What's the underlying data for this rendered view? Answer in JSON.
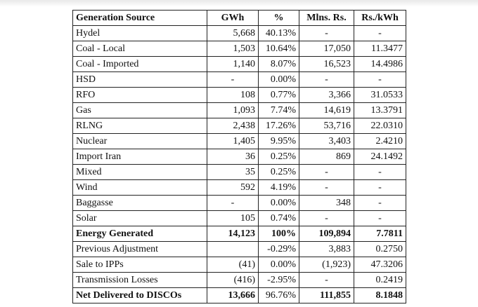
{
  "table": {
    "headers": [
      "Generation Source",
      "GWh",
      "%",
      "Mlns. Rs.",
      "Rs./kWh"
    ],
    "rows": [
      [
        "Hydel",
        "5,668",
        "40.13%",
        "-",
        "-"
      ],
      [
        "Coal - Local",
        "1,503",
        "10.64%",
        "17,050",
        "11.3477"
      ],
      [
        "Coal - Imported",
        "1,140",
        "8.07%",
        "16,523",
        "14.4986"
      ],
      [
        "HSD",
        "-",
        "0.00%",
        "-",
        "-"
      ],
      [
        "RFO",
        "108",
        "0.77%",
        "3,366",
        "31.0533"
      ],
      [
        "Gas",
        "1,093",
        "7.74%",
        "14,619",
        "13.3791"
      ],
      [
        "RLNG",
        "2,438",
        "17.26%",
        "53,716",
        "22.0310"
      ],
      [
        "Nuclear",
        "1,405",
        "9.95%",
        "3,403",
        "2.4210"
      ],
      [
        "Import Iran",
        "36",
        "0.25%",
        "869",
        "24.1492"
      ],
      [
        "Mixed",
        "35",
        "0.25%",
        "-",
        "-"
      ],
      [
        "Wind",
        "592",
        "4.19%",
        "-",
        "-"
      ],
      [
        "Baggasse",
        "-",
        "0.00%",
        "348",
        "-"
      ],
      [
        "Solar",
        "105",
        "0.74%",
        "-",
        "-"
      ],
      [
        "Energy Generated",
        "14,123",
        "100%",
        "109,894",
        "7.7811"
      ],
      [
        "Previous Adjustment",
        "",
        "-0.29%",
        "3,883",
        "0.2750"
      ],
      [
        "Sale to IPPs",
        "(41)",
        "0.00%",
        "(1,923)",
        "47.3206"
      ],
      [
        "Transmission Losses",
        "(416)",
        "-2.95%",
        "-",
        "0.2419"
      ],
      [
        "Net Delivered to DISCOs",
        "13,666",
        "96.76%",
        "111,855",
        "8.1848"
      ]
    ]
  }
}
